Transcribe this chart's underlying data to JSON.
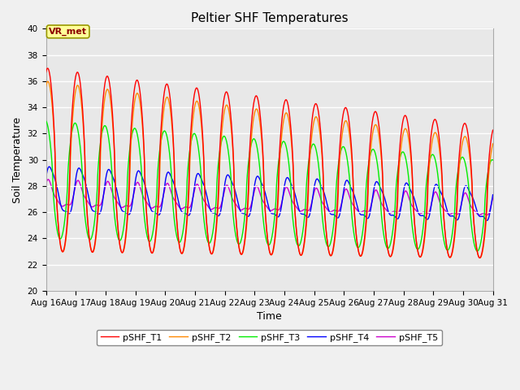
{
  "title": "Peltier SHF Temperatures",
  "xlabel": "Time",
  "ylabel": "Soil Temperature",
  "ylim": [
    20,
    40
  ],
  "colors": {
    "pSHF_T1": "#FF0000",
    "pSHF_T2": "#FF8800",
    "pSHF_T3": "#00EE00",
    "pSHF_T4": "#0000FF",
    "pSHF_T5": "#CC00CC"
  },
  "legend_labels": [
    "pSHF_T1",
    "pSHF_T2",
    "pSHF_T3",
    "pSHF_T4",
    "pSHF_T5"
  ],
  "x_tick_labels": [
    "Aug 16",
    "Aug 17",
    "Aug 18",
    "Aug 19",
    "Aug 20",
    "Aug 21",
    "Aug 22",
    "Aug 23",
    "Aug 24",
    "Aug 25",
    "Aug 26",
    "Aug 27",
    "Aug 28",
    "Aug 29",
    "Aug 30",
    "Aug 31"
  ],
  "annotation_text": "VR_met",
  "bg_color": "#E8E8E8",
  "fig_bg": "#F0F0F0",
  "title_fontsize": 11,
  "tick_fontsize": 7.5,
  "axis_label_fontsize": 9,
  "legend_fontsize": 8
}
